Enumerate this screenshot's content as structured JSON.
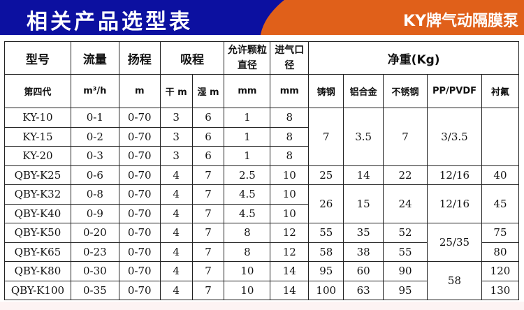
{
  "banner": {
    "title": "相关产品选型表",
    "brand": "KY牌气动隔膜泵",
    "colors": {
      "blue": "#0c10a0",
      "orange": "#e0601a"
    }
  },
  "header": {
    "model": "型号",
    "flow": "流量",
    "head": "扬程",
    "suction": "吸程",
    "particle": "允许颗粒直径",
    "inlet": "进气口径",
    "weight": "净重(Kg)"
  },
  "units": {
    "model": "第四代",
    "flow": "m³/h",
    "head": "m",
    "dry": "干 m",
    "wet": "湿 m",
    "particle": "mm",
    "inlet": "mm",
    "cast": "铸钢",
    "alu": "铝合金",
    "ss": "不锈钢",
    "pp": "PP/PVDF",
    "ptfe": "衬氟"
  },
  "rows": [
    {
      "model": "KY-10",
      "flow": "0-1",
      "head": "0-70",
      "dry": "3",
      "wet": "6",
      "particle": "1",
      "inlet": "8"
    },
    {
      "model": "KY-15",
      "flow": "0-2",
      "head": "0-70",
      "dry": "3",
      "wet": "6",
      "particle": "1",
      "inlet": "8"
    },
    {
      "model": "KY-20",
      "flow": "0-3",
      "head": "0-70",
      "dry": "3",
      "wet": "6",
      "particle": "1",
      "inlet": "8"
    },
    {
      "model": "QBY-K25",
      "flow": "0-6",
      "head": "0-70",
      "dry": "4",
      "wet": "7",
      "particle": "2.5",
      "inlet": "10"
    },
    {
      "model": "QBY-K32",
      "flow": "0-8",
      "head": "0-70",
      "dry": "4",
      "wet": "7",
      "particle": "4.5",
      "inlet": "10"
    },
    {
      "model": "QBY-K40",
      "flow": "0-9",
      "head": "0-70",
      "dry": "4",
      "wet": "7",
      "particle": "4.5",
      "inlet": "10"
    },
    {
      "model": "QBY-K50",
      "flow": "0-20",
      "head": "0-70",
      "dry": "4",
      "wet": "7",
      "particle": "8",
      "inlet": "12"
    },
    {
      "model": "QBY-K65",
      "flow": "0-23",
      "head": "0-70",
      "dry": "4",
      "wet": "7",
      "particle": "8",
      "inlet": "12"
    },
    {
      "model": "QBY-K80",
      "flow": "0-30",
      "head": "0-70",
      "dry": "4",
      "wet": "7",
      "particle": "10",
      "inlet": "14"
    },
    {
      "model": "QBY-K100",
      "flow": "0-35",
      "head": "0-70",
      "dry": "4",
      "wet": "7",
      "particle": "10",
      "inlet": "14"
    }
  ],
  "weights": {
    "ky": {
      "cast": "7",
      "alu": "3.5",
      "ss": "7",
      "pp": "3/3.5",
      "ptfe": ""
    },
    "k25": {
      "cast": "25",
      "alu": "14",
      "ss": "22",
      "pp": "12/16",
      "ptfe": "40"
    },
    "k32_40": {
      "cast": "26",
      "alu": "15",
      "ss": "24",
      "pp": "12/16",
      "ptfe": "45"
    },
    "k50": {
      "cast": "55",
      "alu": "35",
      "ss": "52",
      "ptfe": "75"
    },
    "k65": {
      "cast": "58",
      "alu": "38",
      "ss": "55",
      "ptfe": "80"
    },
    "pp_50_65": "25/35",
    "k80": {
      "cast": "95",
      "alu": "60",
      "ss": "90",
      "ptfe": "120"
    },
    "k100": {
      "cast": "100",
      "alu": "63",
      "ss": "95",
      "ptfe": "130"
    },
    "pp_80_100": "58"
  }
}
